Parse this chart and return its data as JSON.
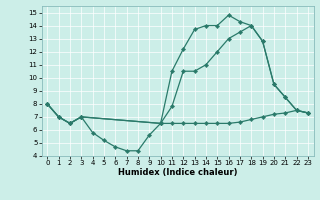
{
  "xlabel": "Humidex (Indice chaleur)",
  "bg_color": "#cceee8",
  "line_color": "#2a7a6a",
  "xlim": [
    -0.5,
    23.5
  ],
  "ylim": [
    4,
    15.5
  ],
  "xticks": [
    0,
    1,
    2,
    3,
    4,
    5,
    6,
    7,
    8,
    9,
    10,
    11,
    12,
    13,
    14,
    15,
    16,
    17,
    18,
    19,
    20,
    21,
    22,
    23
  ],
  "yticks": [
    4,
    5,
    6,
    7,
    8,
    9,
    10,
    11,
    12,
    13,
    14,
    15
  ],
  "line1_x": [
    0,
    1,
    2,
    3,
    4,
    5,
    6,
    7,
    8,
    9,
    10,
    11,
    12,
    13,
    14,
    15,
    16,
    17,
    18,
    19,
    20,
    21,
    22,
    23
  ],
  "line1_y": [
    8.0,
    7.0,
    6.5,
    7.0,
    5.8,
    5.2,
    4.7,
    4.4,
    4.4,
    5.6,
    6.5,
    6.5,
    6.5,
    6.5,
    6.5,
    6.5,
    6.5,
    6.6,
    6.8,
    7.0,
    7.2,
    7.3,
    7.5,
    7.3
  ],
  "line2_x": [
    0,
    1,
    2,
    3,
    10,
    11,
    12,
    13,
    14,
    15,
    16,
    17,
    18,
    19,
    20,
    21,
    22,
    23
  ],
  "line2_y": [
    8.0,
    7.0,
    6.5,
    7.0,
    6.5,
    7.8,
    10.5,
    10.5,
    11.0,
    12.0,
    13.0,
    13.5,
    14.0,
    12.8,
    9.5,
    8.5,
    7.5,
    7.3
  ],
  "line3_x": [
    0,
    1,
    2,
    3,
    10,
    11,
    12,
    13,
    14,
    15,
    16,
    17,
    18,
    19,
    20,
    21,
    22,
    23
  ],
  "line3_y": [
    8.0,
    7.0,
    6.5,
    7.0,
    6.5,
    10.5,
    12.2,
    13.7,
    14.0,
    14.0,
    14.8,
    14.3,
    14.0,
    12.8,
    9.5,
    8.5,
    7.5,
    7.3
  ]
}
